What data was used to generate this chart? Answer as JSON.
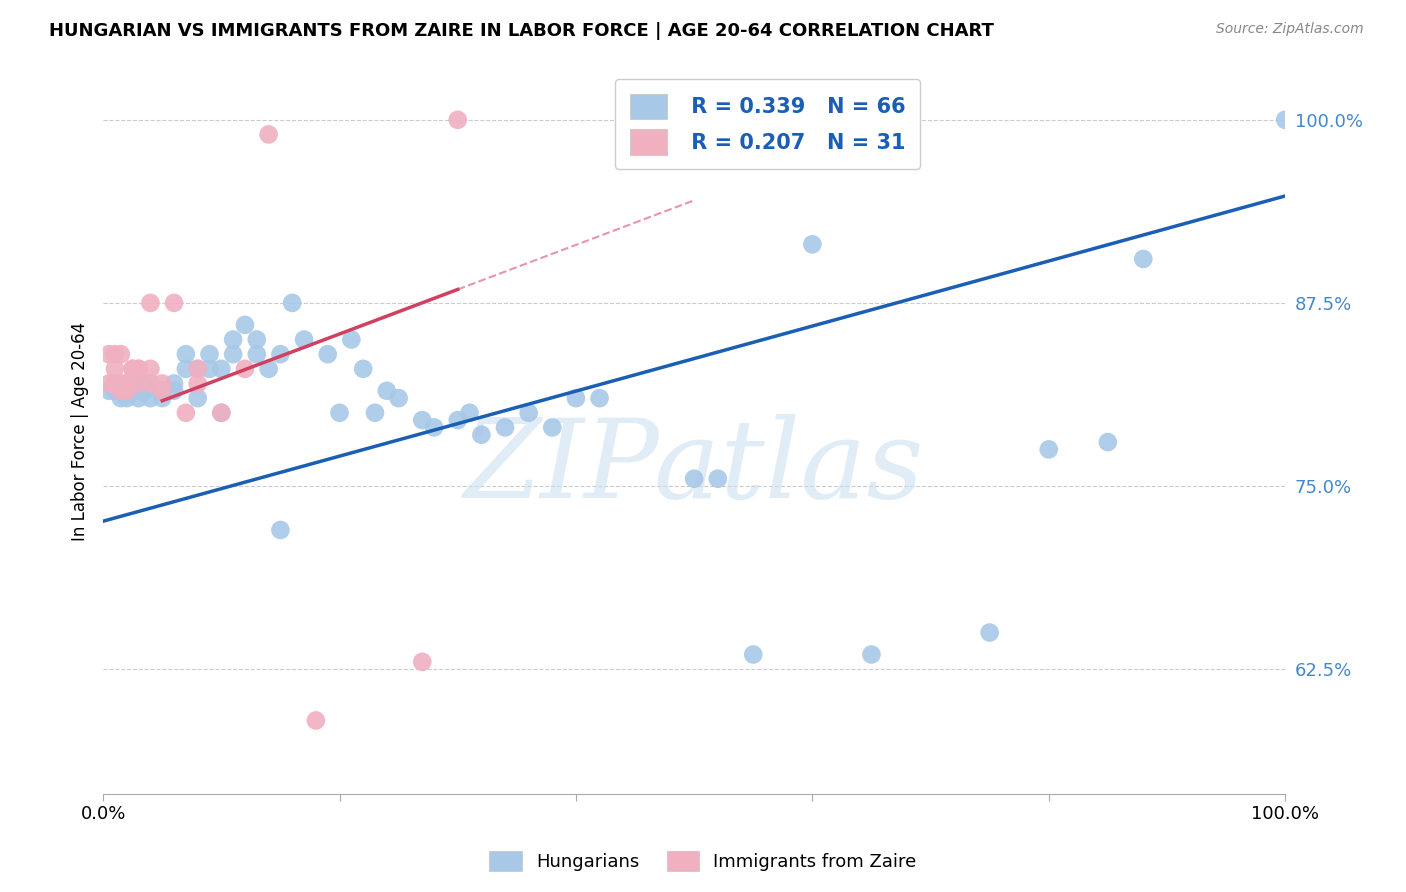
{
  "title": "HUNGARIAN VS IMMIGRANTS FROM ZAIRE IN LABOR FORCE | AGE 20-64 CORRELATION CHART",
  "source": "Source: ZipAtlas.com",
  "ylabel": "In Labor Force | Age 20-64",
  "xlim": [
    0.0,
    1.0
  ],
  "ylim": [
    0.54,
    1.035
  ],
  "yticks": [
    0.625,
    0.75,
    0.875,
    1.0
  ],
  "ytick_labels": [
    "62.5%",
    "75.0%",
    "87.5%",
    "100.0%"
  ],
  "xticks": [
    0.0,
    0.2,
    0.4,
    0.6,
    0.8,
    1.0
  ],
  "xtick_labels": [
    "0.0%",
    "",
    "",
    "",
    "",
    "100.0%"
  ],
  "blue_color": "#a8c8e8",
  "pink_color": "#f0b0c0",
  "blue_line_color": "#1a5fb4",
  "pink_line_color": "#d04060",
  "legend_R_blue": "R = 0.339",
  "legend_N_blue": "N = 66",
  "legend_R_pink": "R = 0.207",
  "legend_N_pink": "N = 31",
  "watermark": "ZIPatlas",
  "blue_line_x0": 0.0,
  "blue_line_y0": 0.726,
  "blue_line_x1": 1.0,
  "blue_line_y1": 0.948,
  "pink_line_x0": 0.0,
  "pink_line_y0": 0.793,
  "pink_line_x1": 0.5,
  "pink_line_y1": 0.945,
  "blue_x": [
    0.005,
    0.01,
    0.01,
    0.015,
    0.015,
    0.02,
    0.02,
    0.02,
    0.025,
    0.025,
    0.03,
    0.03,
    0.03,
    0.035,
    0.035,
    0.04,
    0.04,
    0.05,
    0.05,
    0.06,
    0.06,
    0.07,
    0.07,
    0.08,
    0.08,
    0.09,
    0.09,
    0.1,
    0.1,
    0.11,
    0.11,
    0.12,
    0.13,
    0.13,
    0.14,
    0.15,
    0.15,
    0.16,
    0.17,
    0.19,
    0.2,
    0.21,
    0.22,
    0.23,
    0.24,
    0.25,
    0.27,
    0.28,
    0.3,
    0.31,
    0.32,
    0.34,
    0.36,
    0.38,
    0.4,
    0.42,
    0.5,
    0.52,
    0.55,
    0.6,
    0.65,
    0.75,
    0.8,
    0.85,
    0.88,
    1.0
  ],
  "blue_y": [
    0.815,
    0.82,
    0.815,
    0.81,
    0.815,
    0.81,
    0.815,
    0.82,
    0.815,
    0.82,
    0.81,
    0.815,
    0.82,
    0.815,
    0.815,
    0.81,
    0.82,
    0.815,
    0.81,
    0.82,
    0.815,
    0.83,
    0.84,
    0.83,
    0.81,
    0.83,
    0.84,
    0.83,
    0.8,
    0.84,
    0.85,
    0.86,
    0.84,
    0.85,
    0.83,
    0.72,
    0.84,
    0.875,
    0.85,
    0.84,
    0.8,
    0.85,
    0.83,
    0.8,
    0.815,
    0.81,
    0.795,
    0.79,
    0.795,
    0.8,
    0.785,
    0.79,
    0.8,
    0.79,
    0.81,
    0.81,
    0.755,
    0.755,
    0.635,
    0.915,
    0.635,
    0.65,
    0.775,
    0.78,
    0.905,
    1.0
  ],
  "pink_x": [
    0.005,
    0.005,
    0.01,
    0.01,
    0.01,
    0.015,
    0.015,
    0.015,
    0.02,
    0.02,
    0.02,
    0.025,
    0.025,
    0.03,
    0.03,
    0.03,
    0.04,
    0.04,
    0.04,
    0.05,
    0.05,
    0.06,
    0.07,
    0.08,
    0.08,
    0.1,
    0.12,
    0.14,
    0.18,
    0.27,
    0.3
  ],
  "pink_y": [
    0.84,
    0.82,
    0.84,
    0.82,
    0.83,
    0.84,
    0.82,
    0.815,
    0.82,
    0.815,
    0.82,
    0.83,
    0.83,
    0.82,
    0.83,
    0.83,
    0.83,
    0.82,
    0.875,
    0.82,
    0.815,
    0.875,
    0.8,
    0.82,
    0.83,
    0.8,
    0.83,
    0.99,
    0.59,
    0.63,
    1.0
  ]
}
